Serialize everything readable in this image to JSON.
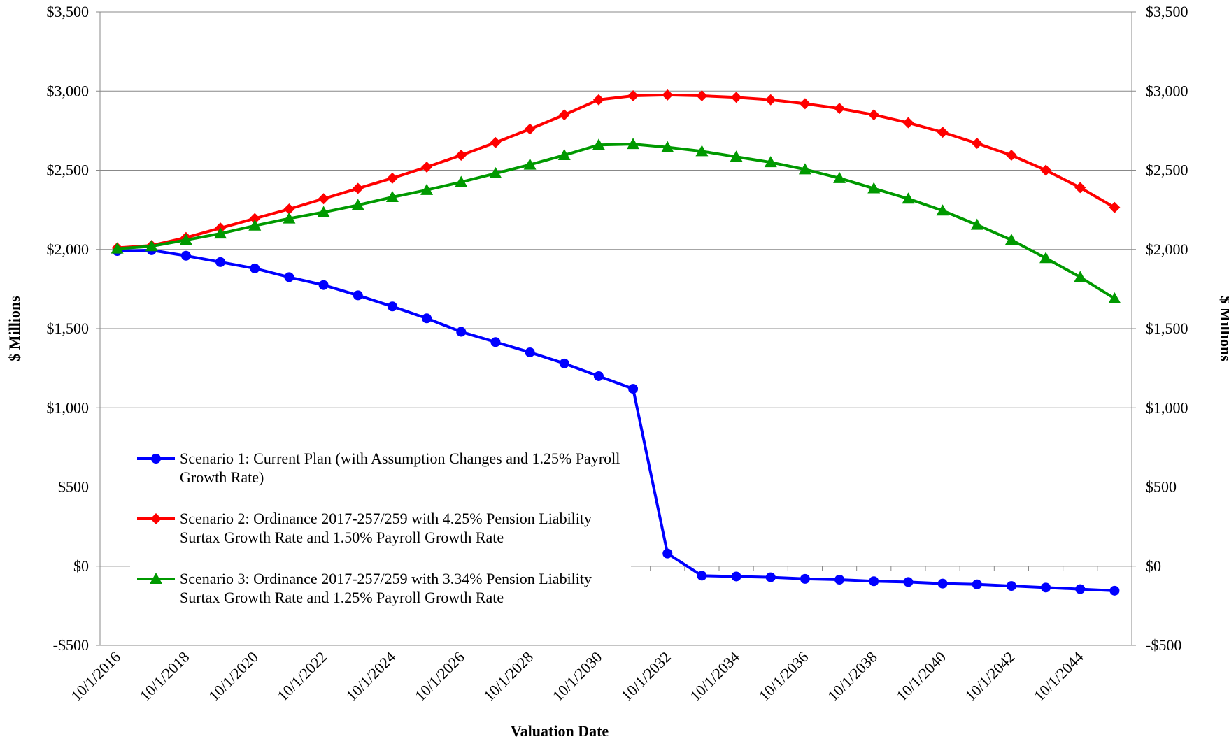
{
  "chart_data": {
    "type": "line",
    "x_label": "Valuation Date",
    "y_label": "$ Millions",
    "y2_label": "$ Millions",
    "categories": [
      "10/1/2016",
      null,
      "10/1/2018",
      null,
      "10/1/2020",
      null,
      "10/1/2022",
      null,
      "10/1/2024",
      null,
      "10/1/2026",
      null,
      "10/1/2028",
      null,
      "10/1/2030",
      null,
      "10/1/2032",
      null,
      "10/1/2034",
      null,
      "10/1/2036",
      null,
      "10/1/2038",
      null,
      "10/1/2040",
      null,
      "10/1/2042",
      null,
      "10/1/2044",
      null
    ],
    "series": [
      {
        "name": "Scenario 1: Current Plan (with Assumption Changes and 1.25% Payroll Growth Rate)",
        "color": "#0000ff",
        "marker": "circle",
        "values": [
          1990,
          1995,
          1960,
          1920,
          1880,
          1825,
          1775,
          1710,
          1640,
          1565,
          1480,
          1415,
          1350,
          1280,
          1200,
          1120,
          80,
          -60,
          -65,
          -70,
          -80,
          -85,
          -95,
          -100,
          -110,
          -115,
          -125,
          -135,
          -145,
          -155
        ]
      },
      {
        "name": "Scenario 2: Ordinance 2017-257/259 with 4.25% Pension Liability Surtax Growth Rate and 1.50% Payroll Growth Rate",
        "color": "#ff0000",
        "marker": "diamond",
        "values": [
          2010,
          2025,
          2075,
          2135,
          2195,
          2255,
          2320,
          2385,
          2450,
          2520,
          2595,
          2675,
          2760,
          2850,
          2945,
          2970,
          2975,
          2970,
          2960,
          2945,
          2920,
          2890,
          2850,
          2800,
          2740,
          2670,
          2595,
          2500,
          2390,
          2265
        ]
      },
      {
        "name": "Scenario 3: Ordinance 2017-257/259 with 3.34% Pension Liability Surtax Growth Rate and 1.25% Payroll Growth Rate",
        "color": "#009900",
        "marker": "triangle",
        "values": [
          2005,
          2020,
          2060,
          2100,
          2150,
          2195,
          2235,
          2280,
          2330,
          2375,
          2425,
          2480,
          2535,
          2595,
          2660,
          2665,
          2645,
          2620,
          2585,
          2550,
          2505,
          2450,
          2385,
          2320,
          2245,
          2155,
          2060,
          1945,
          1825,
          1690
        ]
      }
    ],
    "ylim": [
      -500,
      3500
    ],
    "yticks": [
      {
        "value": -500,
        "label": "-$500"
      },
      {
        "value": 0,
        "label": "$0"
      },
      {
        "value": 500,
        "label": "$500"
      },
      {
        "value": 1000,
        "label": "$1,000"
      },
      {
        "value": 1500,
        "label": "$1,500"
      },
      {
        "value": 2000,
        "label": "$2,000"
      },
      {
        "value": 2500,
        "label": "$2,500"
      },
      {
        "value": 3000,
        "label": "$3,000"
      },
      {
        "value": 3500,
        "label": "$3,500"
      }
    ],
    "y2lim": [
      -500,
      3500
    ],
    "y2ticks": [
      {
        "value": -500,
        "label": "-$500"
      },
      {
        "value": 0,
        "label": "$0"
      },
      {
        "value": 500,
        "label": "$500"
      },
      {
        "value": 1000,
        "label": "$1,000"
      },
      {
        "value": 1500,
        "label": "$1,500"
      },
      {
        "value": 2000,
        "label": "$2,000"
      },
      {
        "value": 2500,
        "label": "$2,500"
      },
      {
        "value": 3000,
        "label": "$3,000"
      },
      {
        "value": 3500,
        "label": "$3,500"
      }
    ],
    "grid": true
  }
}
